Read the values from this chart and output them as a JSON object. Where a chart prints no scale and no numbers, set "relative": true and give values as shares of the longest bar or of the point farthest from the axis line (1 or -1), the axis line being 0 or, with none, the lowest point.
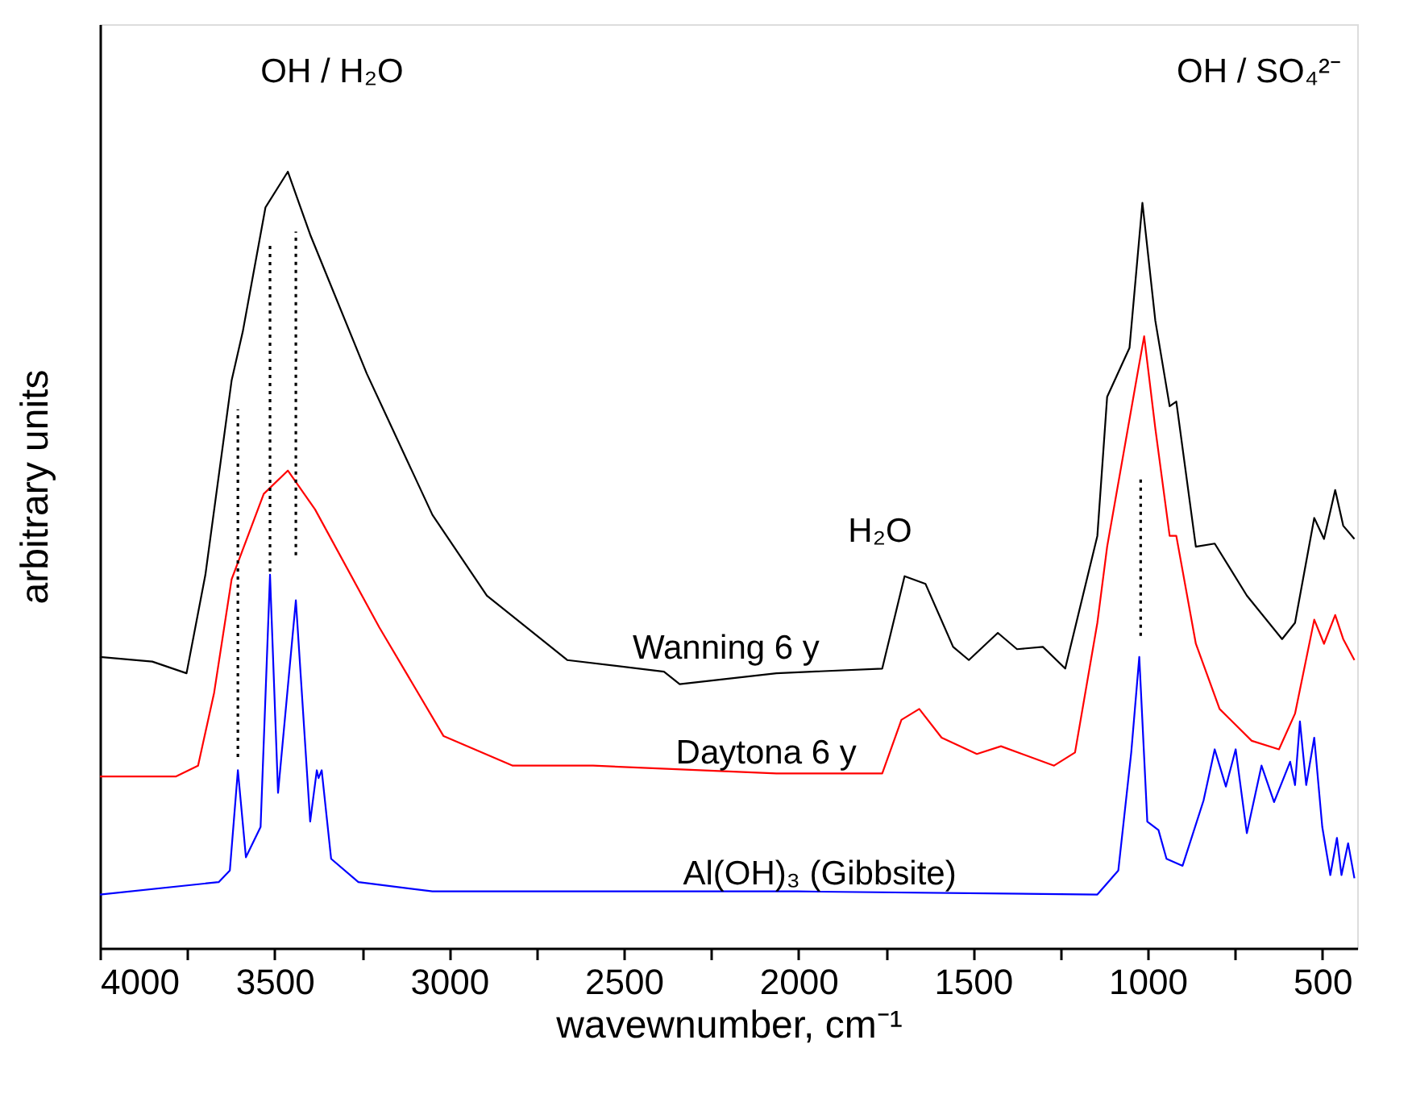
{
  "chart_data": {
    "type": "line",
    "relative": true,
    "xlabel": "wavewnumber, cm⁻¹",
    "ylabel": "arbitrary units",
    "xlim": [
      4000,
      400
    ],
    "xticks": [
      4000,
      {
        "value": 3750,
        "label": null
      },
      3500,
      {
        "value": 3250,
        "label": null
      },
      3000,
      {
        "value": 2750,
        "label": null
      },
      2500,
      {
        "value": 2250,
        "label": null
      },
      2000,
      {
        "value": 1750,
        "label": null
      },
      1500,
      {
        "value": 1250,
        "label": null
      },
      1000,
      {
        "value": 750,
        "label": null
      },
      500
    ],
    "tick_labels": "x",
    "grid": false,
    "line_style": "solid",
    "marker": "none",
    "series": [
      {
        "color": "#000000",
        "x": [
          4000,
          3850,
          3752,
          3698,
          3623,
          3591,
          3526,
          3462,
          3398,
          3236,
          3048,
          2892,
          2662,
          2385,
          2340,
          2063,
          1760,
          1696,
          1636,
          1557,
          1512,
          1429,
          1374,
          1300,
          1236,
          1144,
          1116,
          1052,
          1015,
          978,
          937,
          918,
          862,
          808,
          716,
          615,
          578,
          523,
          495,
          463,
          440,
          408
        ],
        "values": [
          0.375,
          0.369,
          0.354,
          0.481,
          0.731,
          0.794,
          0.954,
          1.0,
          0.919,
          0.74,
          0.558,
          0.454,
          0.371,
          0.356,
          0.34,
          0.354,
          0.36,
          0.479,
          0.469,
          0.388,
          0.371,
          0.406,
          0.385,
          0.388,
          0.36,
          0.531,
          0.71,
          0.773,
          0.96,
          0.808,
          0.698,
          0.704,
          0.517,
          0.521,
          0.454,
          0.398,
          0.419,
          0.554,
          0.527,
          0.59,
          0.544,
          0.527
        ]
      },
      {
        "color": "#ff0000",
        "x": [
          4000,
          3783,
          3719,
          3673,
          3623,
          3531,
          3462,
          3384,
          3200,
          3016,
          2818,
          2588,
          2063,
          1760,
          1705,
          1654,
          1590,
          1489,
          1420,
          1268,
          1208,
          1144,
          1116,
          1029,
          1010,
          978,
          937,
          918,
          862,
          794,
          702,
          624,
          578,
          523,
          495,
          463,
          440,
          408
        ],
        "values": [
          0.221,
          0.221,
          0.235,
          0.329,
          0.475,
          0.585,
          0.615,
          0.565,
          0.413,
          0.273,
          0.235,
          0.235,
          0.225,
          0.225,
          0.294,
          0.308,
          0.271,
          0.25,
          0.26,
          0.235,
          0.252,
          0.419,
          0.517,
          0.74,
          0.788,
          0.669,
          0.531,
          0.531,
          0.392,
          0.308,
          0.267,
          0.256,
          0.302,
          0.423,
          0.392,
          0.429,
          0.398,
          0.371
        ]
      },
      {
        "color": "#0000ff",
        "x": [
          4000,
          3660,
          3628,
          3605,
          3582,
          3540,
          3513,
          3490,
          3439,
          3398,
          3379,
          3374,
          3365,
          3338,
          3260,
          3048,
          2003,
          1144,
          1084,
          1047,
          1024,
          1001,
          969,
          946,
          900,
          840,
          808,
          776,
          748,
          716,
          674,
          638,
          592,
          578,
          564,
          546,
          523,
          500,
          477,
          458,
          445,
          426,
          408
        ],
        "values": [
          0.069,
          0.085,
          0.1,
          0.229,
          0.117,
          0.156,
          0.481,
          0.2,
          0.448,
          0.163,
          0.229,
          0.219,
          0.229,
          0.115,
          0.085,
          0.073,
          0.073,
          0.069,
          0.1,
          0.252,
          0.375,
          0.163,
          0.152,
          0.115,
          0.106,
          0.19,
          0.256,
          0.208,
          0.256,
          0.148,
          0.235,
          0.188,
          0.24,
          0.21,
          0.292,
          0.21,
          0.271,
          0.156,
          0.094,
          0.142,
          0.094,
          0.135,
          0.09
        ]
      },
      {
        "color": "#000000",
        "line_style": "dotted",
        "x": [
          3605,
          3605
        ],
        "values": [
          0.246,
          0.694
        ]
      },
      {
        "color": "#000000",
        "line_style": "dotted",
        "x": [
          3513,
          3513
        ],
        "values": [
          0.485,
          0.906
        ]
      },
      {
        "color": "#000000",
        "line_style": "dotted",
        "x": [
          3439,
          3439
        ],
        "values": [
          0.506,
          0.923
        ]
      },
      {
        "color": "#000000",
        "line_style": "dotted",
        "x": [
          1020,
          1020
        ],
        "values": [
          0.402,
          0.604
        ]
      }
    ],
    "annotations": [
      "OH / H₂O",
      "H₂O",
      "OH / SO₄²⁻",
      {
        "text": "Wanning 6 y",
        "x": 1912,
        "y": 0.36
      },
      {
        "text": "Daytona 6 y",
        "x": 1806,
        "y": 0.225
      },
      {
        "text": "Al(OH)₃ (Gibbsite)",
        "x": 1520,
        "y": 0.07
      }
    ]
  }
}
